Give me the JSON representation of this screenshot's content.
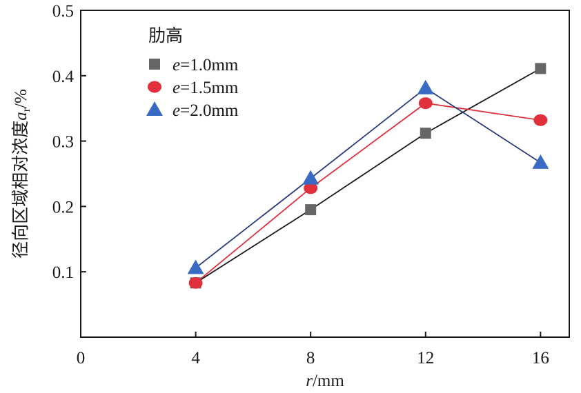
{
  "chart_data": {
    "type": "line",
    "title": "",
    "xlabel": {
      "var": "r",
      "unit": "/mm"
    },
    "ylabel": {
      "text": "径向区域相对浓度",
      "var": "a",
      "sub": "r",
      "unit": "/%"
    },
    "x": [
      4,
      8,
      12,
      16
    ],
    "xlim": [
      0,
      17
    ],
    "ylim": [
      0,
      0.5
    ],
    "xticks": [
      0,
      4,
      8,
      12,
      16
    ],
    "xtick_labels": [
      "0",
      "4",
      "8",
      "12",
      "16"
    ],
    "yticks": [
      0.1,
      0.2,
      0.3,
      0.4,
      0.5
    ],
    "ytick_labels": [
      "0.1",
      "0.2",
      "0.3",
      "0.4",
      "0.5"
    ],
    "grid": false,
    "legend": {
      "title": "肋高",
      "position": "top-left"
    },
    "series": [
      {
        "name": "e=1.0mm",
        "var": "e",
        "value_text": "=1.0mm",
        "marker": "square",
        "color": "#666666",
        "line_color": "#1a1a1a",
        "values": [
          0.083,
          0.195,
          0.312,
          0.411
        ]
      },
      {
        "name": "e=1.5mm",
        "var": "e",
        "value_text": "=1.5mm",
        "marker": "circle",
        "color": "#e0303c",
        "line_color": "#e0303c",
        "values": [
          0.083,
          0.228,
          0.358,
          0.332
        ]
      },
      {
        "name": "e=2.0mm",
        "var": "e",
        "value_text": "=2.0mm",
        "marker": "triangle",
        "color": "#3a6bc4",
        "line_color": "#2a3b7c",
        "values": [
          0.106,
          0.243,
          0.381,
          0.267
        ]
      }
    ]
  }
}
